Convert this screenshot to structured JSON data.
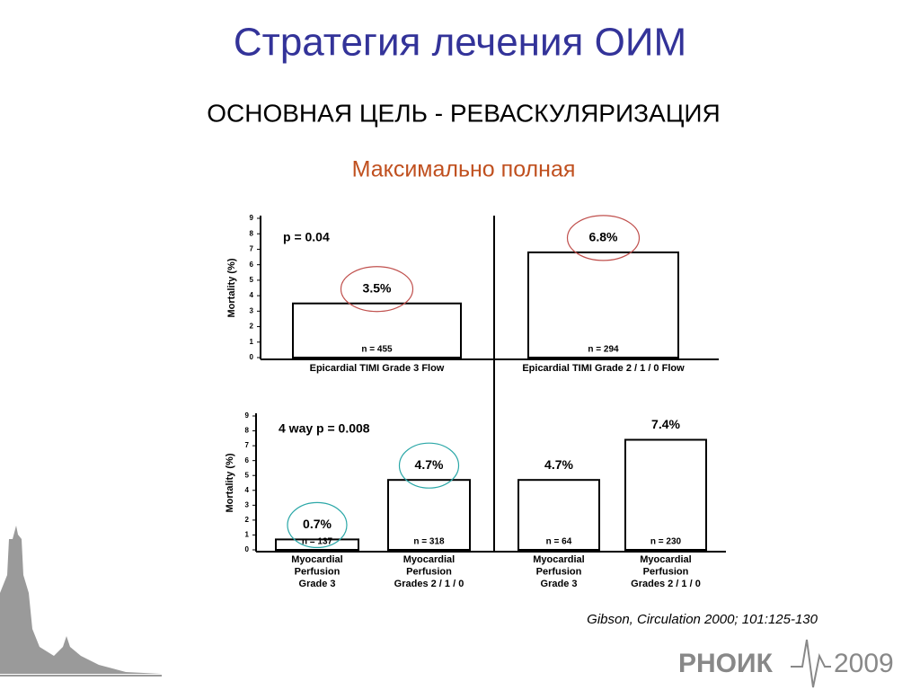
{
  "slide": {
    "title": "Стратегия лечения ОИМ",
    "subtitle": "ОСНОВНАЯ ЦЕЛЬ - РЕВАСКУЛЯРИЗАЦИЯ",
    "subheader": "Максимально полная",
    "citation": "Gibson, Circulation 2000; 101:125-130",
    "logo": "РНОИК",
    "logo_year": "2009"
  },
  "chart_data": [
    {
      "type": "bar",
      "ylabel": "Mortality (%)",
      "annotation": "p = 0.04",
      "categories": [
        [
          "Epicardial TIMI Grade 3 Flow"
        ],
        [
          "Epicardial TIMI Grade 2 / 1 / 0 Flow"
        ]
      ],
      "values": [
        3.5,
        6.8
      ],
      "value_labels": [
        "3.5%",
        "6.8%"
      ],
      "n_labels": [
        "n = 455",
        "n = 294"
      ],
      "ylim": [
        0,
        9
      ],
      "yticks": [
        0,
        1,
        2,
        3,
        4,
        5,
        6,
        7,
        8,
        9
      ],
      "color": "#ffffff",
      "highlights": [
        {
          "index": 0,
          "color": "#c0504d"
        },
        {
          "index": 1,
          "color": "#c0504d"
        }
      ]
    },
    {
      "type": "bar",
      "ylabel": "Mortality (%)",
      "annotation": "4 way p = 0.008",
      "categories": [
        [
          "Myocardial",
          "Perfusion",
          "Grade 3"
        ],
        [
          "Myocardial",
          "Perfusion",
          "Grades 2 / 1 / 0"
        ],
        [
          "Myocardial",
          "Perfusion",
          "Grade 3"
        ],
        [
          "Myocardial",
          "Perfusion",
          "Grades 2 / 1 / 0"
        ]
      ],
      "values": [
        0.7,
        4.7,
        4.7,
        7.4
      ],
      "value_labels": [
        "0.7%",
        "4.7%",
        "4.7%",
        "7.4%"
      ],
      "n_labels": [
        "n = 137",
        "n = 318",
        "n = 64",
        "n =  230"
      ],
      "ylim": [
        0,
        9
      ],
      "yticks": [
        0,
        1,
        2,
        3,
        4,
        5,
        6,
        7,
        8,
        9
      ],
      "color": "#ffffff",
      "highlights": [
        {
          "index": 0,
          "color": "#2aa7a7"
        },
        {
          "index": 1,
          "color": "#2aa7a7"
        }
      ]
    }
  ]
}
